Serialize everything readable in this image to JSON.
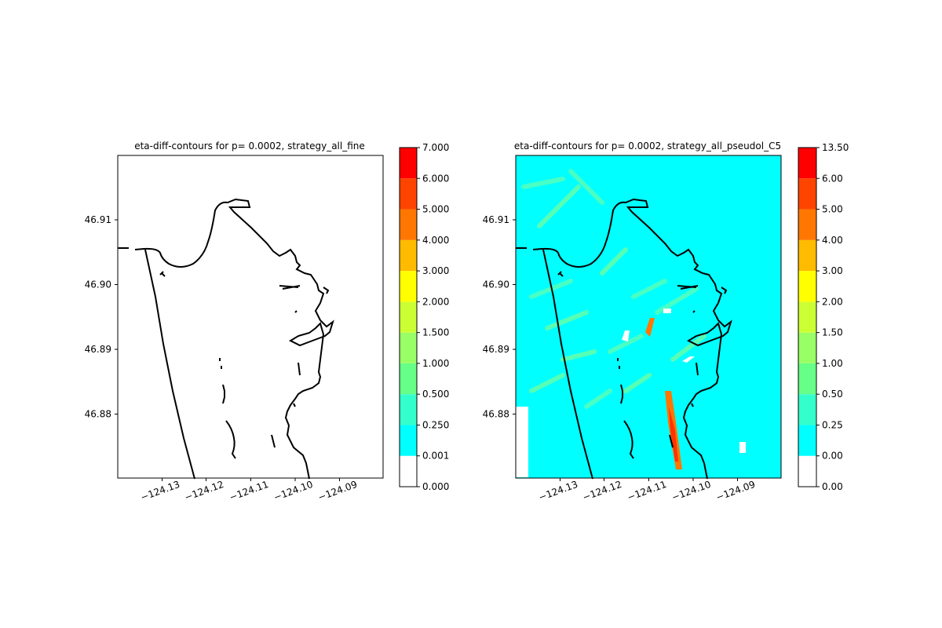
{
  "chart_data": [
    {
      "type": "heatmap",
      "title": "eta-diff-contours for p= 0.0002, strategy_all_fine",
      "xlabel": "",
      "ylabel": "",
      "x_ticks": [
        -124.13,
        -124.12,
        -124.11,
        -124.1,
        -124.09
      ],
      "x_tick_labels": [
        "−124.13",
        "−124.12",
        "−124.11",
        "−124.10",
        "−124.09"
      ],
      "y_ticks": [
        46.88,
        46.89,
        46.9,
        46.91
      ],
      "y_tick_labels": [
        "46.88",
        "46.89",
        "46.90",
        "46.91"
      ],
      "xlim": [
        -124.14,
        -124.08
      ],
      "ylim": [
        46.871,
        46.92
      ],
      "grid": false,
      "field": "empty",
      "colorbar": {
        "labels": [
          "0.000",
          "0.001",
          "0.250",
          "0.500",
          "1.000",
          "1.500",
          "2.000",
          "3.000",
          "4.000",
          "5.000",
          "6.000",
          "7.000"
        ],
        "colors": [
          "#ffffff",
          "#00ffff",
          "#33ffcc",
          "#66ff88",
          "#99ff66",
          "#ccff33",
          "#ffff00",
          "#ffbb00",
          "#ff7700",
          "#ff4400",
          "#ff0000"
        ]
      }
    },
    {
      "type": "heatmap",
      "title": "eta-diff-contours for p= 0.0002, strategy_all_pseudol_C5",
      "xlabel": "",
      "ylabel": "",
      "x_ticks": [
        -124.13,
        -124.12,
        -124.11,
        -124.1,
        -124.09
      ],
      "x_tick_labels": [
        "−124.13",
        "−124.12",
        "−124.11",
        "−124.10",
        "−124.09"
      ],
      "y_ticks": [
        46.88,
        46.89,
        46.9,
        46.91
      ],
      "y_tick_labels": [
        "46.88",
        "46.89",
        "46.90",
        "46.91"
      ],
      "xlim": [
        -124.14,
        -124.08
      ],
      "ylim": [
        46.871,
        46.92
      ],
      "grid": false,
      "field": "filled",
      "colorbar": {
        "labels": [
          "0.00",
          "0.00",
          "0.25",
          "0.50",
          "1.00",
          "1.50",
          "2.00",
          "3.00",
          "4.00",
          "5.00",
          "6.00",
          "13.50"
        ],
        "colors": [
          "#ffffff",
          "#00ffff",
          "#33ffcc",
          "#66ff88",
          "#99ff66",
          "#ccff33",
          "#ffff00",
          "#ffbb00",
          "#ff7700",
          "#ff4400",
          "#ff0000"
        ]
      }
    }
  ]
}
